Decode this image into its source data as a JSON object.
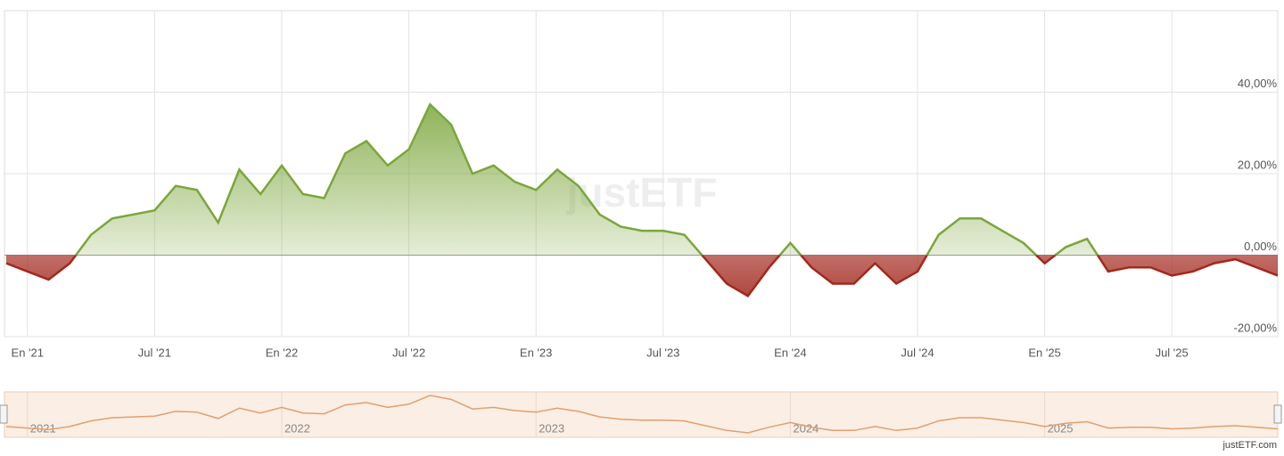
{
  "chart_data": {
    "type": "line",
    "x": [
      "2020-12",
      "2021-01",
      "2021-02",
      "2021-03",
      "2021-04",
      "2021-05",
      "2021-06",
      "2021-07",
      "2021-08",
      "2021-09",
      "2021-10",
      "2021-11",
      "2021-12",
      "2022-01",
      "2022-02",
      "2022-03",
      "2022-04",
      "2022-05",
      "2022-06",
      "2022-07",
      "2022-08",
      "2022-09",
      "2022-10",
      "2022-11",
      "2022-12",
      "2023-01",
      "2023-02",
      "2023-03",
      "2023-04",
      "2023-05",
      "2023-06",
      "2023-07",
      "2023-08",
      "2023-09",
      "2023-10",
      "2023-11",
      "2023-12",
      "2024-01",
      "2024-02",
      "2024-03",
      "2024-04",
      "2024-05",
      "2024-06",
      "2024-07",
      "2024-08",
      "2024-09",
      "2024-10",
      "2024-11",
      "2024-12",
      "2025-01",
      "2025-02",
      "2025-03",
      "2025-04",
      "2025-05",
      "2025-06",
      "2025-07",
      "2025-08",
      "2025-09",
      "2025-10",
      "2025-11",
      "2025-12"
    ],
    "values": [
      -2,
      -4,
      -6,
      -2,
      5,
      9,
      10,
      11,
      17,
      16,
      8,
      21,
      15,
      22,
      15,
      14,
      25,
      28,
      22,
      26,
      37,
      32,
      20,
      22,
      18,
      16,
      21,
      17,
      10,
      7,
      6,
      6,
      5,
      -1,
      -7,
      -10,
      -3,
      3,
      -3,
      -7,
      -7,
      -2,
      -7,
      -4,
      5,
      9,
      9,
      6,
      3,
      -2,
      2,
      4,
      -4,
      -3,
      -3,
      -5,
      -4,
      -2,
      -1,
      -3,
      -5
    ],
    "positive_color": "#7ba63b",
    "negative_color": "#a2281d",
    "xlim": [
      "2020-12",
      "2025-12"
    ],
    "xticks": [
      {
        "value": "2021-01",
        "label": "En '21"
      },
      {
        "value": "2021-07",
        "label": "Jul '21"
      },
      {
        "value": "2022-01",
        "label": "En '22"
      },
      {
        "value": "2022-07",
        "label": "Jul '22"
      },
      {
        "value": "2023-01",
        "label": "En '23"
      },
      {
        "value": "2023-07",
        "label": "Jul '23"
      },
      {
        "value": "2024-01",
        "label": "En '24"
      },
      {
        "value": "2024-07",
        "label": "Jul '24"
      },
      {
        "value": "2025-01",
        "label": "En '25"
      },
      {
        "value": "2025-07",
        "label": "Jul '25"
      }
    ],
    "ylim": [
      -20,
      60
    ],
    "yticks": [
      {
        "value": -20,
        "label": "-20,00%"
      },
      {
        "value": 0,
        "label": "0,00%"
      },
      {
        "value": 20,
        "label": "20,00%"
      },
      {
        "value": 40,
        "label": "40,00%"
      }
    ],
    "grid": true,
    "watermark": "justETF",
    "navigator": {
      "color": "#e0a070",
      "ticks": [
        {
          "value": "2021-01",
          "label": "2021"
        },
        {
          "value": "2022-01",
          "label": "2022"
        },
        {
          "value": "2023-01",
          "label": "2023"
        },
        {
          "value": "2024-01",
          "label": "2024"
        },
        {
          "value": "2025-01",
          "label": "2025"
        }
      ]
    },
    "credit": "justETF.com"
  }
}
